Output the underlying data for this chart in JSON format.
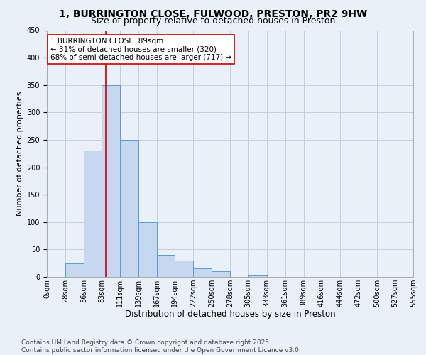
{
  "title": "1, BURRINGTON CLOSE, FULWOOD, PRESTON, PR2 9HW",
  "subtitle": "Size of property relative to detached houses in Preston",
  "xlabel": "Distribution of detached houses by size in Preston",
  "ylabel": "Number of detached properties",
  "bin_edges": [
    0,
    28,
    56,
    83,
    111,
    139,
    167,
    194,
    222,
    250,
    278,
    305,
    333,
    361,
    389,
    416,
    444,
    472,
    500,
    527,
    555
  ],
  "bin_labels": [
    "0sqm",
    "28sqm",
    "56sqm",
    "83sqm",
    "111sqm",
    "139sqm",
    "167sqm",
    "194sqm",
    "222sqm",
    "250sqm",
    "278sqm",
    "305sqm",
    "333sqm",
    "361sqm",
    "389sqm",
    "416sqm",
    "444sqm",
    "472sqm",
    "500sqm",
    "527sqm",
    "555sqm"
  ],
  "counts": [
    0,
    25,
    230,
    350,
    250,
    100,
    40,
    30,
    15,
    10,
    0,
    3,
    0,
    0,
    0,
    0,
    0,
    0,
    0,
    0
  ],
  "bar_facecolor": "#c5d8f0",
  "bar_edgecolor": "#5b9bd5",
  "ylim": [
    0,
    450
  ],
  "yticks": [
    0,
    50,
    100,
    150,
    200,
    250,
    300,
    350,
    400,
    450
  ],
  "vline_x": 89,
  "vline_color": "#cc0000",
  "annotation_text": "1 BURRINGTON CLOSE: 89sqm\n← 31% of detached houses are smaller (320)\n68% of semi-detached houses are larger (717) →",
  "annotation_box_color": "#ffffff",
  "annotation_box_edgecolor": "#cc0000",
  "grid_color": "#c0c8d8",
  "background_color": "#eaf0f8",
  "footer_text": "Contains HM Land Registry data © Crown copyright and database right 2025.\nContains public sector information licensed under the Open Government Licence v3.0.",
  "title_fontsize": 10,
  "subtitle_fontsize": 9,
  "xlabel_fontsize": 8.5,
  "ylabel_fontsize": 8,
  "tick_fontsize": 7,
  "annotation_fontsize": 7.5,
  "footer_fontsize": 6.5
}
